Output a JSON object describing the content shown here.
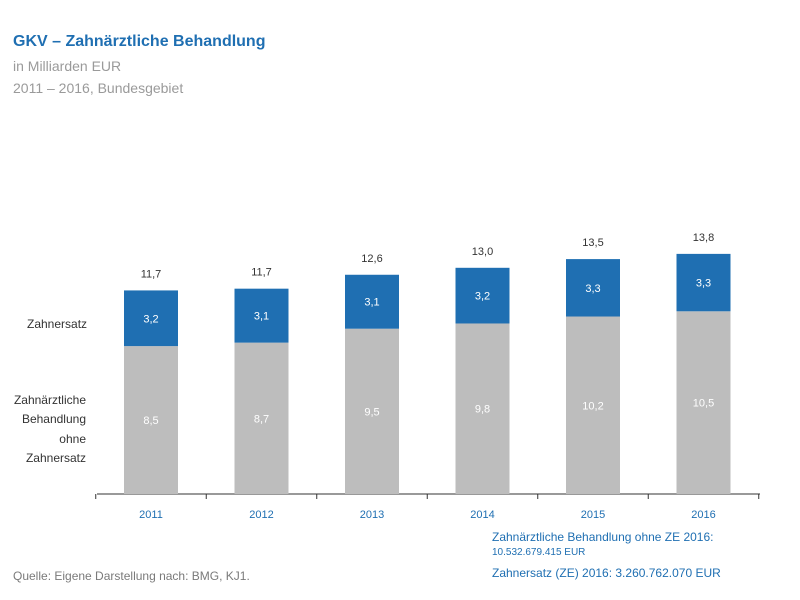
{
  "header": {
    "title": "GKV – Zahnärztliche Behandlung",
    "subtitle": "in Milliarden EUR",
    "period": "2011 – 2016, Bundesgebiet"
  },
  "chart_data": {
    "type": "bar",
    "stacked": true,
    "categories": [
      "2011",
      "2012",
      "2013",
      "2014",
      "2015",
      "2016"
    ],
    "series": [
      {
        "name": "Zahnärztliche Behandlung ohne Zahnersatz",
        "values": [
          8.5,
          8.7,
          9.5,
          9.8,
          10.2,
          10.5
        ],
        "labels": [
          "8,5",
          "8,7",
          "9,5",
          "9,8",
          "10,2",
          "10,5"
        ],
        "color": "#bdbdbd"
      },
      {
        "name": "Zahnersatz",
        "values": [
          3.2,
          3.1,
          3.1,
          3.2,
          3.3,
          3.3
        ],
        "labels": [
          "3,2",
          "3,1",
          "3,1",
          "3,2",
          "3,3",
          "3,3"
        ],
        "color": "#1f6fb2"
      }
    ],
    "totals": [
      11.7,
      11.7,
      12.6,
      13.0,
      13.5,
      13.8
    ],
    "total_labels": [
      "11,7",
      "11,7",
      "12,6",
      "13,0",
      "13,5",
      "13,8"
    ],
    "row_labels": {
      "top": "Zahnersatz",
      "bottom": [
        "Zahnärztliche",
        "Behandlung",
        "ohne",
        "Zahnersatz"
      ]
    },
    "ylim": [
      0,
      14
    ],
    "grid": false
  },
  "notes": {
    "line1": "Zahnärztliche Behandlung ohne ZE 2016:",
    "line2": "10.532.679.415 EUR",
    "line3": "Zahnersatz (ZE) 2016: 3.260.762.070 EUR"
  },
  "source": "Quelle: Eigene Darstellung nach: BMG, KJ1."
}
